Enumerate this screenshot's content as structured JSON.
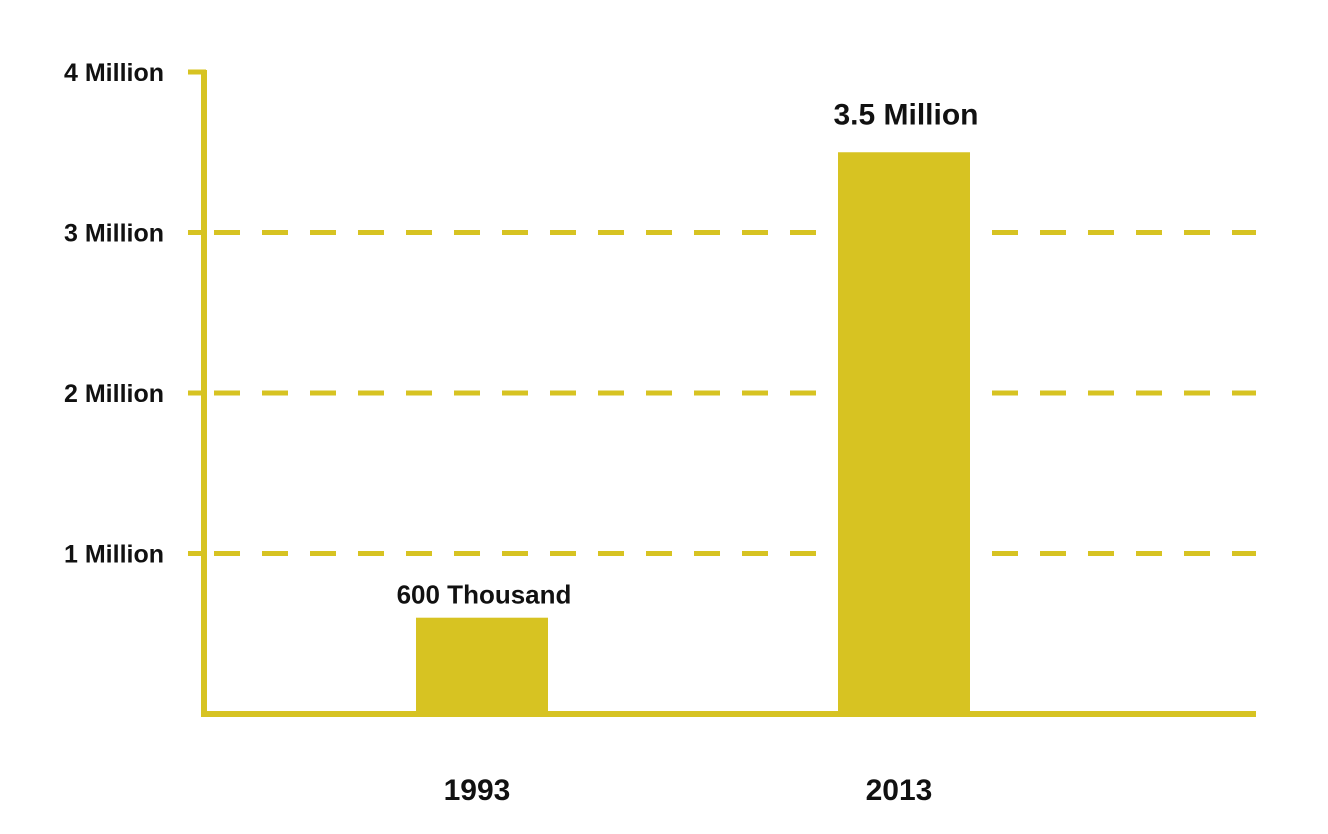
{
  "colors": {
    "accent": "#d7c322",
    "text": "#111111",
    "background": "#ffffff"
  },
  "chart_data": {
    "type": "bar",
    "categories": [
      "1993",
      "2013"
    ],
    "values": [
      600000,
      3500000
    ],
    "data_labels": [
      "600 Thousand",
      "3.5 Million"
    ],
    "ylim": [
      0,
      4000000
    ],
    "y_ticks": [
      {
        "value": 1000000,
        "label": "1 Million"
      },
      {
        "value": 2000000,
        "label": "2 Million"
      },
      {
        "value": 3000000,
        "label": "3 Million"
      },
      {
        "value": 4000000,
        "label": "4 Million"
      }
    ],
    "grid": true,
    "legend": "none"
  }
}
